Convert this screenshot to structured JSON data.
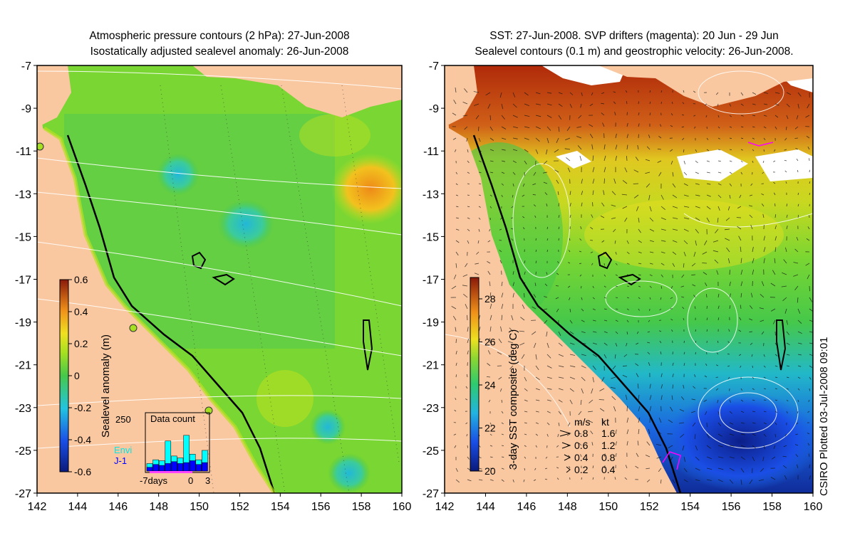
{
  "left_panel": {
    "title_line1": "Atmospheric pressure contours (2 hPa): 27-Jun-2008",
    "title_line2": "Isostatically adjusted sealevel anomaly: 26-Jun-2008",
    "colorbar_label": "Sealevel anomaly (m)",
    "colorbar_ticks": [
      "0.6",
      "0.4",
      "0.2",
      "0",
      "-0.2",
      "-0.4",
      "-0.6"
    ],
    "inset": {
      "title": "Data count",
      "y_max_label": "250",
      "legend_envi": "Envi",
      "legend_j1": "J-1",
      "x_labels": [
        "-7days",
        "0",
        "3"
      ],
      "colors": {
        "envi": "#00ffff",
        "j1": "#0000ff"
      },
      "envi_counts": [
        40,
        60,
        55,
        160,
        80,
        70,
        190,
        90,
        60,
        110
      ],
      "j1_counts": [
        20,
        35,
        30,
        40,
        50,
        40,
        45,
        55,
        35,
        45
      ]
    }
  },
  "right_panel": {
    "title_line1": "SST: 27-Jun-2008. SVP drifters (magenta): 20 Jun - 29 Jun",
    "title_line2": "Sealevel contours (0.1 m) and geostrophic velocity: 26-Jun-2008.",
    "colorbar_label": "3-day SST composite (deg C)",
    "colorbar_ticks": [
      "28",
      "26",
      "24",
      "22",
      "20"
    ],
    "velocity_key": {
      "header_ms": "m/s",
      "header_kt": "kt",
      "rows": [
        {
          "ms": "0.8",
          "kt": "1.6"
        },
        {
          "ms": "0.6",
          "kt": "1.2"
        },
        {
          "ms": "0.4",
          "kt": "0.8"
        },
        {
          "ms": "0.2",
          "kt": "0.4"
        }
      ]
    }
  },
  "axes": {
    "y_ticks": [
      "-7",
      "-9",
      "-11",
      "-13",
      "-15",
      "-17",
      "-19",
      "-21",
      "-23",
      "-25",
      "-27"
    ],
    "x_ticks": [
      "142",
      "144",
      "146",
      "148",
      "150",
      "152",
      "154",
      "156",
      "158",
      "160"
    ],
    "lon_range": [
      142,
      160
    ],
    "lat_range": [
      -27,
      -7
    ]
  },
  "credit": "CSIRO Plotted 03-Jul-2008 09:01",
  "colors": {
    "land": "#f9c8a0",
    "sla_zero": "#7ad632",
    "sla_high": "#f39c1a",
    "sla_low": "#2ec9b6"
  }
}
